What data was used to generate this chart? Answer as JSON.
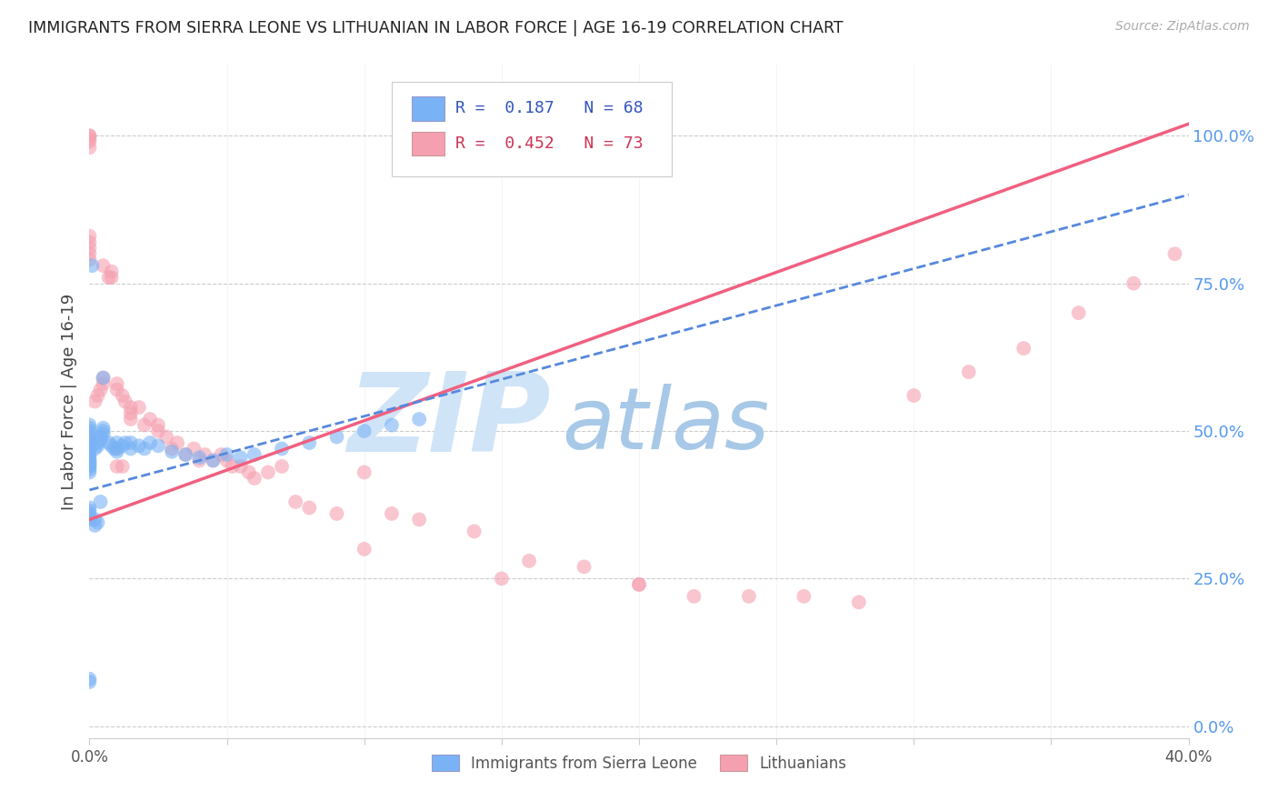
{
  "title": "IMMIGRANTS FROM SIERRA LEONE VS LITHUANIAN IN LABOR FORCE | AGE 16-19 CORRELATION CHART",
  "source": "Source: ZipAtlas.com",
  "ylabel": "In Labor Force | Age 16-19",
  "right_ytick_labels": [
    "0.0%",
    "25.0%",
    "50.0%",
    "75.0%",
    "100.0%"
  ],
  "right_ytick_values": [
    0.0,
    0.25,
    0.5,
    0.75,
    1.0
  ],
  "xlim": [
    0.0,
    0.4
  ],
  "ylim": [
    -0.02,
    1.12
  ],
  "xtick_labels": [
    "0.0%",
    "",
    "",
    "",
    "",
    "",
    "",
    "",
    "40.0%"
  ],
  "xtick_values": [
    0.0,
    0.05,
    0.1,
    0.15,
    0.2,
    0.25,
    0.3,
    0.35,
    0.4
  ],
  "legend_blue_r": "R =  0.187",
  "legend_blue_n": "N = 68",
  "legend_pink_r": "R =  0.452",
  "legend_pink_n": "N = 73",
  "blue_color": "#7ab3f5",
  "pink_color": "#f5a0b0",
  "blue_line_color": "#5588dd",
  "pink_line_color": "#f06080",
  "title_color": "#222222",
  "source_color": "#aaaaaa",
  "right_axis_color": "#5599ee",
  "grid_color": "#cccccc",
  "watermark_zip": "ZIP",
  "watermark_atlas": "atlas",
  "watermark_color_zip": "#d0e4f7",
  "watermark_color_atlas": "#a8c8e8",
  "blue_scatter_x": [
    0.0,
    0.0,
    0.0,
    0.0,
    0.0,
    0.0,
    0.0,
    0.0,
    0.0,
    0.0,
    0.0,
    0.0,
    0.0,
    0.0,
    0.0,
    0.0,
    0.0,
    0.0,
    0.0,
    0.0,
    0.002,
    0.003,
    0.003,
    0.004,
    0.004,
    0.005,
    0.005,
    0.005,
    0.007,
    0.008,
    0.009,
    0.01,
    0.01,
    0.01,
    0.012,
    0.013,
    0.015,
    0.015,
    0.018,
    0.02,
    0.022,
    0.025,
    0.03,
    0.035,
    0.04,
    0.045,
    0.05,
    0.055,
    0.06,
    0.07,
    0.08,
    0.09,
    0.1,
    0.11,
    0.12,
    0.0,
    0.0,
    0.0,
    0.0,
    0.0,
    0.001,
    0.002,
    0.002,
    0.003,
    0.004,
    0.005,
    0.0,
    0.0
  ],
  "blue_scatter_y": [
    0.44,
    0.445,
    0.45,
    0.455,
    0.46,
    0.465,
    0.47,
    0.475,
    0.48,
    0.485,
    0.49,
    0.495,
    0.5,
    0.505,
    0.51,
    0.43,
    0.435,
    0.44,
    0.445,
    0.45,
    0.47,
    0.475,
    0.48,
    0.485,
    0.49,
    0.495,
    0.5,
    0.505,
    0.48,
    0.475,
    0.47,
    0.465,
    0.47,
    0.48,
    0.475,
    0.48,
    0.47,
    0.48,
    0.475,
    0.47,
    0.48,
    0.475,
    0.465,
    0.46,
    0.455,
    0.45,
    0.46,
    0.455,
    0.46,
    0.47,
    0.48,
    0.49,
    0.5,
    0.51,
    0.52,
    0.35,
    0.355,
    0.36,
    0.365,
    0.37,
    0.78,
    0.35,
    0.34,
    0.345,
    0.38,
    0.59,
    0.075,
    0.08
  ],
  "pink_scatter_x": [
    0.0,
    0.0,
    0.0,
    0.0,
    0.0,
    0.002,
    0.003,
    0.004,
    0.005,
    0.005,
    0.007,
    0.008,
    0.01,
    0.01,
    0.012,
    0.013,
    0.015,
    0.015,
    0.015,
    0.018,
    0.02,
    0.022,
    0.025,
    0.025,
    0.028,
    0.03,
    0.032,
    0.035,
    0.038,
    0.04,
    0.042,
    0.045,
    0.048,
    0.05,
    0.052,
    0.055,
    0.058,
    0.06,
    0.065,
    0.07,
    0.075,
    0.08,
    0.09,
    0.1,
    0.11,
    0.12,
    0.14,
    0.16,
    0.18,
    0.2,
    0.22,
    0.24,
    0.26,
    0.28,
    0.3,
    0.32,
    0.34,
    0.36,
    0.38,
    0.395,
    0.0,
    0.0,
    0.0,
    0.0,
    0.0,
    0.005,
    0.008,
    0.01,
    0.01,
    0.012,
    0.1,
    0.15,
    0.2
  ],
  "pink_scatter_y": [
    0.98,
    0.99,
    1.0,
    1.0,
    0.995,
    0.55,
    0.56,
    0.57,
    0.58,
    0.59,
    0.76,
    0.77,
    0.57,
    0.58,
    0.56,
    0.55,
    0.52,
    0.53,
    0.54,
    0.54,
    0.51,
    0.52,
    0.5,
    0.51,
    0.49,
    0.47,
    0.48,
    0.46,
    0.47,
    0.45,
    0.46,
    0.45,
    0.46,
    0.45,
    0.44,
    0.44,
    0.43,
    0.42,
    0.43,
    0.44,
    0.38,
    0.37,
    0.36,
    0.43,
    0.36,
    0.35,
    0.33,
    0.28,
    0.27,
    0.24,
    0.22,
    0.22,
    0.22,
    0.21,
    0.56,
    0.6,
    0.64,
    0.7,
    0.75,
    0.8,
    0.8,
    0.79,
    0.81,
    0.82,
    0.83,
    0.78,
    0.76,
    0.44,
    0.47,
    0.44,
    0.3,
    0.25,
    0.24
  ]
}
